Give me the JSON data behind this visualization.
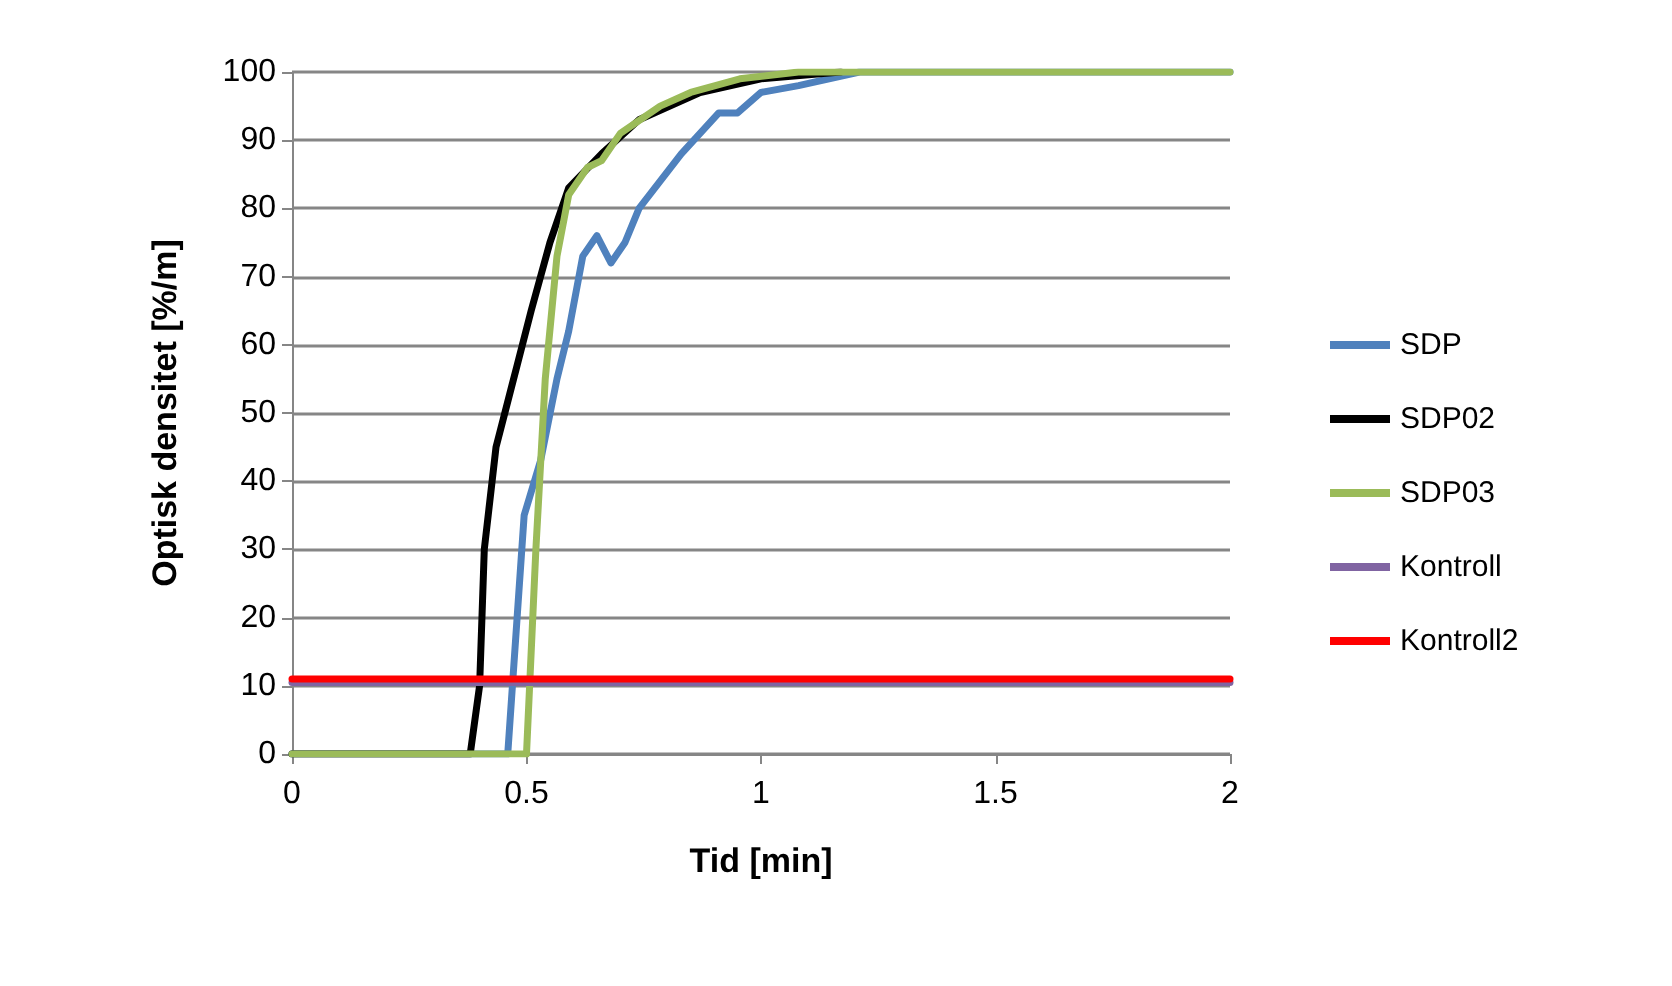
{
  "chart_data": {
    "type": "line",
    "xlabel": "Tid [min]",
    "ylabel": "Optisk densitet [%/m]",
    "xlim": [
      0,
      2
    ],
    "xticks": [
      0,
      0.5,
      1,
      1.5,
      2
    ],
    "ylim": [
      0,
      100
    ],
    "yticks": [
      0,
      10,
      20,
      30,
      40,
      50,
      60,
      70,
      80,
      90,
      100
    ],
    "grid": "y",
    "legend": "right",
    "marker": "none",
    "line_style": "solid",
    "series": [
      {
        "name": "SDP",
        "color": "#4f81bd",
        "x": [
          0,
          0.46,
          0.48,
          0.495,
          0.53,
          0.565,
          0.59,
          0.62,
          0.65,
          0.68,
          0.71,
          0.74,
          0.785,
          0.83,
          0.87,
          0.91,
          0.95,
          1.0,
          1.08,
          1.21,
          2
        ],
        "values": [
          0,
          0,
          20,
          35,
          43,
          55,
          62,
          73,
          76,
          72,
          75,
          80,
          84,
          88,
          91,
          94,
          94,
          97,
          98,
          100,
          100
        ]
      },
      {
        "name": "SDP02",
        "color": "#000000",
        "x": [
          0,
          0.38,
          0.4,
          0.41,
          0.435,
          0.48,
          0.51,
          0.55,
          0.59,
          0.66,
          0.74,
          0.87,
          1.0,
          1.17
        ],
        "values": [
          0,
          0,
          10,
          30,
          45,
          57,
          65,
          75,
          83,
          88,
          93,
          97,
          99,
          100
        ]
      },
      {
        "name": "SDP03",
        "color": "#9bbb59",
        "x": [
          0,
          0.5,
          0.52,
          0.54,
          0.565,
          0.59,
          0.63,
          0.66,
          0.7,
          0.785,
          0.85,
          0.955,
          1.08,
          2
        ],
        "values": [
          0,
          0,
          30,
          55,
          73,
          82,
          86,
          87,
          91,
          95,
          97,
          99,
          100,
          100
        ]
      },
      {
        "name": "Kontroll",
        "color": "#8064a2",
        "x": [
          0,
          2
        ],
        "values": [
          10.5,
          10.5
        ]
      },
      {
        "name": "Kontroll2",
        "color": "#ff0000",
        "x": [
          0,
          2
        ],
        "values": [
          11,
          11
        ]
      }
    ]
  }
}
